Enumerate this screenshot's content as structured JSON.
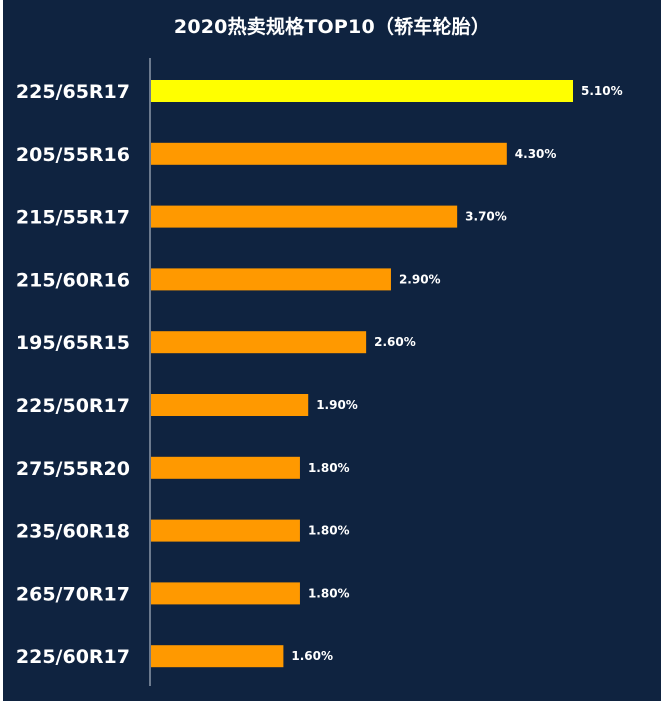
{
  "chart_data": {
    "type": "bar",
    "orientation": "horizontal",
    "title": "2020热卖规格TOP10（轿车轮胎）",
    "categories": [
      "225/65R17",
      "205/55R16",
      "215/55R17",
      "215/60R16",
      "195/65R15",
      "225/50R17",
      "275/55R20",
      "235/60R18",
      "265/70R17",
      "225/60R17"
    ],
    "values": [
      5.1,
      4.3,
      3.7,
      2.9,
      2.6,
      1.9,
      1.8,
      1.8,
      1.8,
      1.6
    ],
    "value_labels": [
      "5.10%",
      "4.30%",
      "3.70%",
      "2.90%",
      "2.60%",
      "1.90%",
      "1.80%",
      "1.80%",
      "1.80%",
      "1.60%"
    ],
    "unit": "%",
    "xlim": [
      0,
      5.1
    ],
    "grid": false,
    "legend": "none",
    "colors": {
      "background": "#0f2340",
      "bar": "#ff9900",
      "highlight_bar": "#ffff00",
      "text": "#ffffff",
      "axis": "#c8d0dc"
    },
    "highlight_index": 0
  }
}
